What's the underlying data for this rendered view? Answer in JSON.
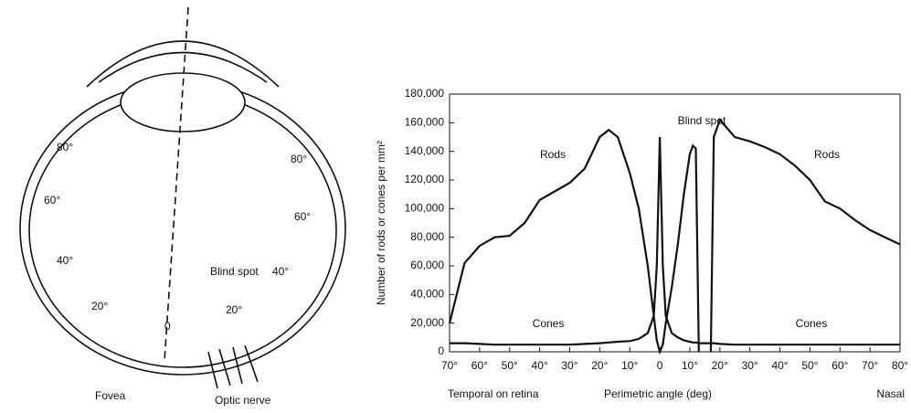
{
  "diagram": {
    "labels": [
      "80°",
      "80°",
      "60°",
      "60°",
      "40°",
      "40°",
      "20°",
      "20°",
      "0",
      "Blind spot",
      "Fovea",
      "Optic nerve"
    ]
  },
  "chart_data": {
    "type": "line",
    "y_label": "Number of rods or cones per mm²",
    "x_label": "Perimetric angle (deg)",
    "x_left_label": "Temporal on retina",
    "x_right_label": "Nasal",
    "annotation": "Blind spot",
    "x": [
      -70,
      -65,
      -60,
      -55,
      -50,
      -45,
      -40,
      -35,
      -30,
      -25,
      -20,
      -17,
      -14,
      -10,
      -7,
      -4,
      -2,
      -1,
      0,
      1,
      2,
      4,
      6,
      8,
      10,
      11,
      12,
      13,
      15,
      17,
      18,
      20,
      25,
      30,
      35,
      40,
      45,
      50,
      55,
      60,
      65,
      70,
      75,
      80
    ],
    "series": [
      {
        "name": "Rods",
        "color": "#111111",
        "values": [
          20000,
          62000,
          74000,
          80000,
          81000,
          90000,
          106000,
          112000,
          118000,
          128000,
          150000,
          155000,
          150000,
          125000,
          100000,
          60000,
          25000,
          8000,
          0,
          5000,
          20000,
          45000,
          75000,
          110000,
          138000,
          144000,
          142000,
          0,
          null,
          0,
          150000,
          162000,
          150000,
          147000,
          143000,
          138000,
          130000,
          120000,
          105000,
          100000,
          92000,
          85000,
          80000,
          75000
        ]
      },
      {
        "name": "Cones",
        "color": "#111111",
        "values": [
          6000,
          6000,
          5500,
          5000,
          5000,
          5000,
          5000,
          5000,
          5000,
          5500,
          6000,
          6500,
          7000,
          7500,
          9000,
          13000,
          25000,
          60000,
          150000,
          60000,
          25000,
          13000,
          10000,
          8000,
          7000,
          6500,
          6500,
          6000,
          6000,
          6000,
          6000,
          5500,
          5000,
          5000,
          5000,
          5000,
          5000,
          5000,
          5000,
          5000,
          5000,
          5000,
          5000,
          5000
        ]
      }
    ],
    "xlim": [
      -70,
      80
    ],
    "xticks": [
      {
        "value": -70,
        "label": "70°"
      },
      {
        "value": -60,
        "label": "60°"
      },
      {
        "value": -50,
        "label": "50°"
      },
      {
        "value": -40,
        "label": "40°"
      },
      {
        "value": -30,
        "label": "30°"
      },
      {
        "value": -20,
        "label": "20°"
      },
      {
        "value": -10,
        "label": "10°"
      },
      0,
      {
        "value": 10,
        "label": "10°"
      },
      {
        "value": 20,
        "label": "20°"
      },
      {
        "value": 30,
        "label": "30°"
      },
      {
        "value": 40,
        "label": "40°"
      },
      {
        "value": 50,
        "label": "50°"
      },
      {
        "value": 60,
        "label": "60°"
      },
      {
        "value": 70,
        "label": "70°"
      },
      {
        "value": 80,
        "label": "80°"
      }
    ],
    "ylim": [
      0,
      180000
    ],
    "yticks": [
      0,
      {
        "value": 20000,
        "label": "20,000"
      },
      {
        "value": 40000,
        "label": "40,000"
      },
      {
        "value": 60000,
        "label": "60,000"
      },
      {
        "value": 80000,
        "label": "80,000"
      },
      {
        "value": 100000,
        "label": "100,000"
      },
      {
        "value": 120000,
        "label": "120,000"
      },
      {
        "value": 140000,
        "label": "140,000"
      },
      {
        "value": 160000,
        "label": "160,000"
      },
      {
        "value": 180000,
        "label": "180,000"
      }
    ],
    "grid": false
  }
}
